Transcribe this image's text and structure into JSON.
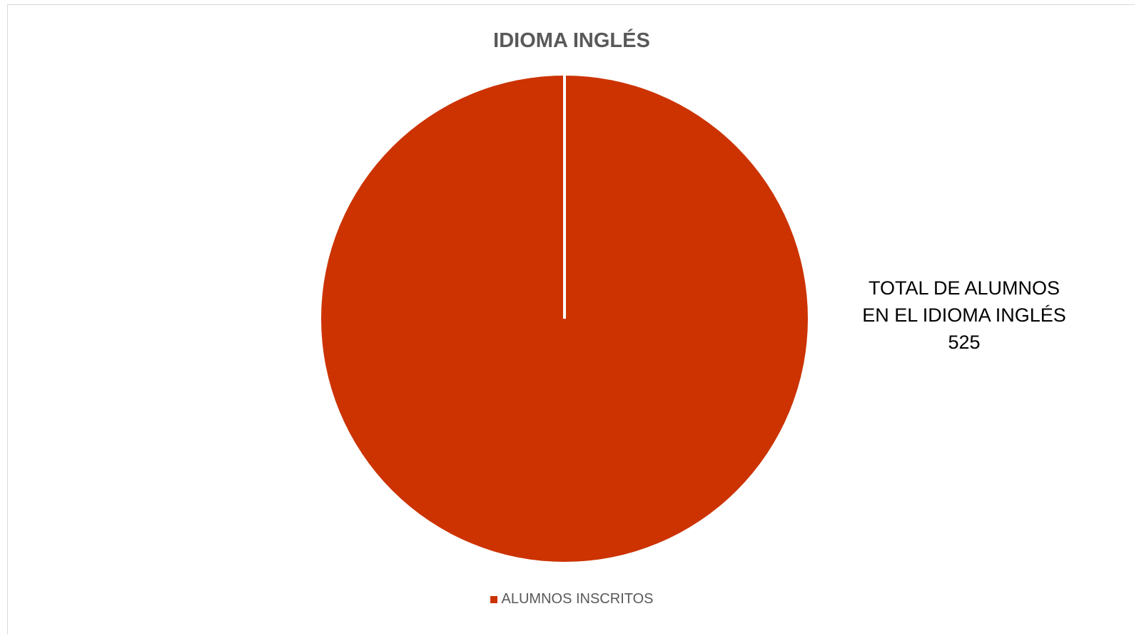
{
  "chart_data": {
    "type": "pie",
    "title": "IDIOMA INGLÉS",
    "categories": [
      "ALUMNOS INSCRITOS"
    ],
    "values": [
      525
    ],
    "data_label": {
      "line1": "TOTAL DE ALUMNOS",
      "line2": "EN EL IDIOMA INGLÉS",
      "value": "525"
    },
    "legend_position": "bottom",
    "colors": {
      "slice": "#CC3300",
      "title": "#595959"
    }
  }
}
